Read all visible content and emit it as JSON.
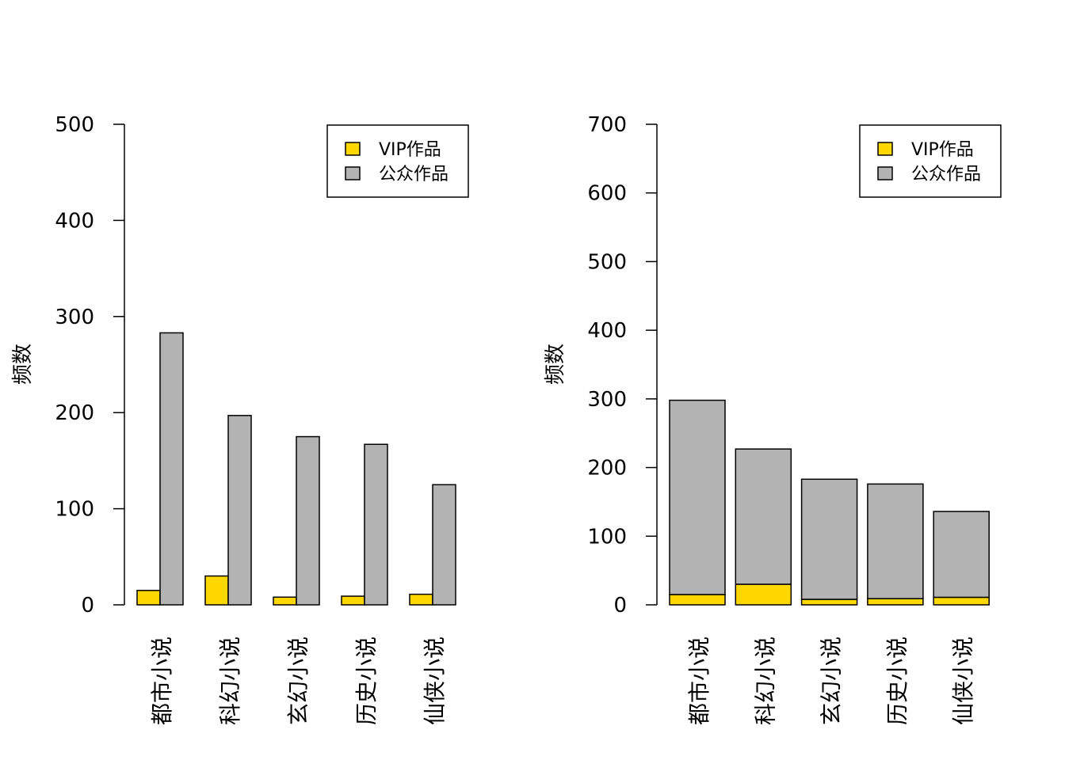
{
  "chart_data": [
    {
      "type": "bar",
      "mode": "grouped",
      "categories": [
        "都市小说",
        "科幻小说",
        "玄幻小说",
        "历史小说",
        "仙侠小说"
      ],
      "series": [
        {
          "name": "VIP作品",
          "values": [
            15,
            30,
            8,
            9,
            11
          ]
        },
        {
          "name": "公众作品",
          "values": [
            283,
            197,
            175,
            167,
            125
          ]
        }
      ],
      "ylabel": "频数",
      "ylim": [
        0,
        500
      ],
      "yticks": [
        0,
        100,
        200,
        300,
        400,
        500
      ],
      "legend": "top-right",
      "grid": false
    },
    {
      "type": "bar",
      "mode": "stacked",
      "categories": [
        "都市小说",
        "科幻小说",
        "玄幻小说",
        "历史小说",
        "仙侠小说"
      ],
      "series": [
        {
          "name": "VIP作品",
          "values": [
            15,
            30,
            8,
            9,
            11
          ]
        },
        {
          "name": "公众作品",
          "values": [
            283,
            197,
            175,
            167,
            125
          ]
        }
      ],
      "ylabel": "频数",
      "ylim": [
        0,
        700
      ],
      "yticks": [
        0,
        100,
        200,
        300,
        400,
        500,
        600,
        700
      ],
      "legend": "top-right",
      "grid": false
    }
  ],
  "colors": {
    "VIP作品": "#FFD700",
    "公众作品": "#B3B3B3"
  }
}
